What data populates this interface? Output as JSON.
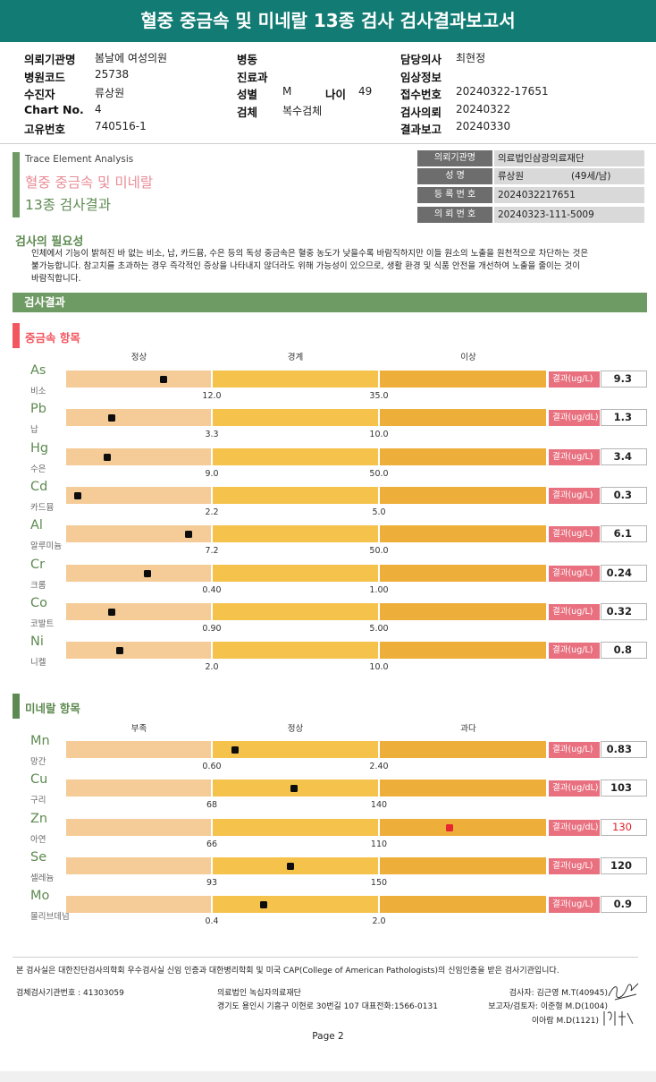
{
  "title": "혈중 중금속 및 미네랄 13종 검사 검사결과보고서",
  "header": {
    "left": [
      {
        "label": "의뢰기관명",
        "value": "봄날에 여성의원"
      },
      {
        "label": "병원코드",
        "value": "25738"
      },
      {
        "label": "수진자",
        "value": "류상원"
      },
      {
        "label": "Chart No.",
        "value": "4"
      },
      {
        "label": "고유번호",
        "value": "740516-1"
      }
    ],
    "mid": {
      "ward_label": "병동",
      "ward_value": "",
      "dept_label": "진료과",
      "dept_value": "",
      "sex_label": "성별",
      "sex_value": "M",
      "age_label": "나이",
      "age_value": "49",
      "specimen_label": "검체",
      "specimen_value": "복수검체"
    },
    "right": [
      {
        "label": "담당의사",
        "value": "최현정"
      },
      {
        "label": "임상정보",
        "value": ""
      },
      {
        "label": "접수번호",
        "value": "20240322-17651"
      },
      {
        "label": "검사의뢰",
        "value": "20240322"
      },
      {
        "label": "결과보고",
        "value": "20240330"
      }
    ]
  },
  "intro": {
    "english": "Trace Element Analysis",
    "pink_title": "혈중 중금속 및 미네랄",
    "green_title": "13종 검사결과"
  },
  "info_table": [
    {
      "label": "의뢰기관명",
      "value": "의료법인삼광의료재단"
    },
    {
      "label": "성       명",
      "value": "류상원",
      "extra": "(49세/남)"
    },
    {
      "label": "등 록 번 호",
      "value": "2024032217651"
    },
    {
      "label": "의 뢰 번 호",
      "value": "20240323-111-5009"
    }
  ],
  "necessity": {
    "heading": "검사의 필요성",
    "lines": [
      "인체에서 기능이 밝혀진 바 없는 비소, 납, 카드뮴, 수은 등의 독성 중금속은 혈중 농도가 낮을수록 바람직하지만 이들 원소의 노출을 원천적으로 차단하는 것은",
      "불가능합니다. 참고치를 초과하는 경우 즉각적인 증상을 나타내지 않더라도 위해 가능성이 있으므로, 생활 환경 및 식품 안전을 개선하여 노출을 줄이는 것이",
      "바람직합니다."
    ]
  },
  "results_banner": "검사결과",
  "heavy": {
    "heading": "중금속 항목",
    "color": "#f2565f",
    "columns": [
      "정상",
      "경계",
      "이상"
    ],
    "items": [
      {
        "sym": "As",
        "name": "비소",
        "t1": "12.0",
        "t2": "35.0",
        "unit": "결과(ug/L)",
        "value": "9.3",
        "pos": 0.67
      },
      {
        "sym": "Pb",
        "name": "납",
        "t1": "3.3",
        "t2": "10.0",
        "unit": "결과(ug/dL)",
        "value": "1.3",
        "pos": 0.31
      },
      {
        "sym": "Hg",
        "name": "수은",
        "t1": "9.0",
        "t2": "50.0",
        "unit": "결과(ug/L)",
        "value": "3.4",
        "pos": 0.28
      },
      {
        "sym": "Cd",
        "name": "카드뮴",
        "t1": "2.2",
        "t2": "5.0",
        "unit": "결과(ug/L)",
        "value": "0.3",
        "pos": 0.08
      },
      {
        "sym": "Al",
        "name": "알루미늄",
        "t1": "7.2",
        "t2": "50.0",
        "unit": "결과(ug/L)",
        "value": "6.1",
        "pos": 0.84
      },
      {
        "sym": "Cr",
        "name": "크롬",
        "t1": "0.40",
        "t2": "1.00",
        "unit": "결과(ug/L)",
        "value": "0.24",
        "pos": 0.56
      },
      {
        "sym": "Co",
        "name": "코발트",
        "t1": "0.90",
        "t2": "5.00",
        "unit": "결과(ug/L)",
        "value": "0.32",
        "pos": 0.31
      },
      {
        "sym": "Ni",
        "name": "니켈",
        "t1": "2.0",
        "t2": "10.0",
        "unit": "결과(ug/L)",
        "value": "0.8",
        "pos": 0.37
      }
    ]
  },
  "mineral": {
    "heading": "미네랄 항목",
    "color": "#5d8a50",
    "columns": [
      "부족",
      "정상",
      "과다"
    ],
    "items": [
      {
        "sym": "Mn",
        "name": "망간",
        "t1": "0.60",
        "t2": "2.40",
        "unit": "결과(ug/L)",
        "value": "0.83",
        "pos": 1.14,
        "high": false
      },
      {
        "sym": "Cu",
        "name": "구리",
        "t1": "68",
        "t2": "140",
        "unit": "결과(ug/dL)",
        "value": "103",
        "pos": 1.49,
        "high": false
      },
      {
        "sym": "Zn",
        "name": "아연",
        "t1": "66",
        "t2": "110",
        "unit": "결과(ug/dL)",
        "value": "130",
        "pos": 2.42,
        "high": true
      },
      {
        "sym": "Se",
        "name": "셀레늄",
        "t1": "93",
        "t2": "150",
        "unit": "결과(ug/L)",
        "value": "120",
        "pos": 1.47,
        "high": false
      },
      {
        "sym": "Mo",
        "name": "몰리브데넘",
        "t1": "0.4",
        "t2": "2.0",
        "unit": "결과(ug/L)",
        "value": "0.9",
        "pos": 1.31,
        "high": false
      }
    ]
  },
  "footer": {
    "cert": "본 검사실은 대한진단검사의학회 우수검사실 신임 인증과 대한병리학회 및 미국 CAP(College of American Pathologists)의 신임인증을 받은 검사기관입니다.",
    "agency_no": "검체검사기관번호 : 41303059",
    "org_name": "의료법인 녹십자의료재단",
    "org_addr": "경기도 용인시 기흥구 이현로 30번길 107 대표전화:1566-0131",
    "staff": [
      {
        "role": "검사자:",
        "name": "김근영 M.T(40945)"
      },
      {
        "role": "보고자/검토자:",
        "name": "이준형 M.D(1004)"
      },
      {
        "role": "",
        "name": "이아람 M.D(1121)"
      }
    ],
    "page": "Page 2"
  }
}
